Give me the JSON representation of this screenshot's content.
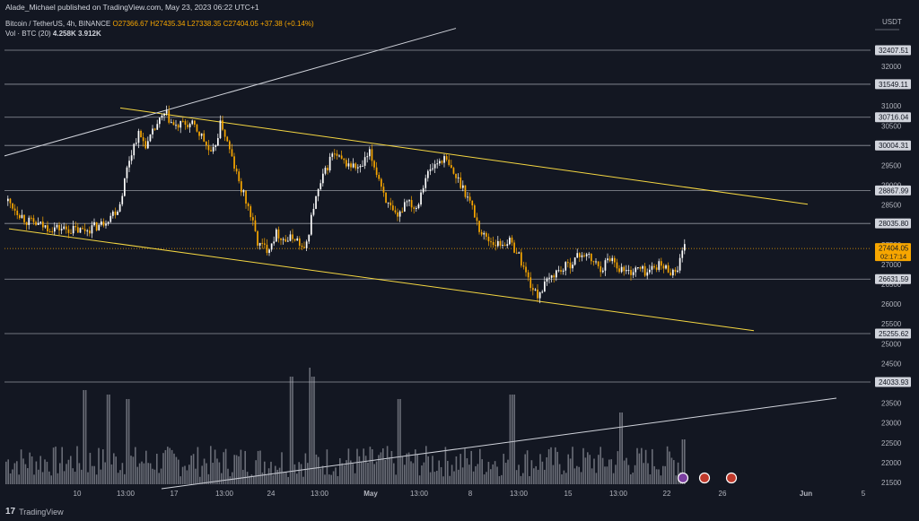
{
  "publisher_line": "Alade_Michael published on TradingView.com, May 23, 2023 06:22 UTC+1",
  "symbol": {
    "name": "Bitcoin / TetherUS, 4h, BINANCE",
    "ohlc": "O27366.67  H27435.34  L27338.35  C27404.05  +37.38 (+0.14%)"
  },
  "volume": {
    "label": "Vol · BTC (20)",
    "v1": "4.258K",
    "v2": "3.912K"
  },
  "footer": {
    "logo": "17",
    "brand": "TradingView"
  },
  "colors": {
    "background": "#131722",
    "candle": "#ffffff",
    "candle_alt": "#f7a600",
    "channel": "#f5d742",
    "trendline": "#d1d4dc",
    "level_line": "#b2b5be",
    "price_tag": "#f7a600"
  },
  "chart_data": {
    "type": "candlestick",
    "currency": "USDT",
    "ylim": [
      21200,
      33500
    ],
    "y_ticks": [
      21500,
      22000,
      22500,
      23000,
      23500,
      24000,
      24500,
      25000,
      25500,
      26000,
      26500,
      27000,
      27500,
      28000,
      28500,
      29000,
      29500,
      30000,
      30500,
      31000,
      31500,
      32000
    ],
    "x_ticks": [
      "10",
      "13:00",
      "17",
      "13:00",
      "24",
      "13:00",
      "May",
      "13:00",
      "8",
      "13:00",
      "15",
      "13:00",
      "22",
      "26",
      "Jun",
      "5"
    ],
    "horizontal_levels": [
      32407.51,
      31549.11,
      30716.04,
      30004.31,
      28867.99,
      28035.8,
      26631.59,
      25255.62,
      24033.93
    ],
    "current_price": 27404.05,
    "countdown": "02:17:14",
    "price_path": [
      [
        0,
        28600
      ],
      [
        2,
        28100
      ],
      [
        4,
        27950
      ],
      [
        6,
        27900
      ],
      [
        8,
        27850
      ],
      [
        10,
        28000
      ],
      [
        12,
        28450
      ],
      [
        13,
        29600
      ],
      [
        14,
        30300
      ],
      [
        15,
        30000
      ],
      [
        16,
        30500
      ],
      [
        17,
        30800
      ],
      [
        18,
        30450
      ],
      [
        19,
        30550
      ],
      [
        20,
        30500
      ],
      [
        21,
        30200
      ],
      [
        22,
        29700
      ],
      [
        23,
        30600
      ],
      [
        24,
        29800
      ],
      [
        25,
        29000
      ],
      [
        26,
        28400
      ],
      [
        27,
        27500
      ],
      [
        28,
        27400
      ],
      [
        29,
        27800
      ],
      [
        30,
        27600
      ],
      [
        31,
        27700
      ],
      [
        32,
        27300
      ],
      [
        33,
        28500
      ],
      [
        34,
        29200
      ],
      [
        35,
        29800
      ],
      [
        36,
        29600
      ],
      [
        37,
        29500
      ],
      [
        38,
        29400
      ],
      [
        39,
        29800
      ],
      [
        40,
        29200
      ],
      [
        41,
        28500
      ],
      [
        42,
        28100
      ],
      [
        43,
        28700
      ],
      [
        44,
        28400
      ],
      [
        45,
        29200
      ],
      [
        46,
        29500
      ],
      [
        47,
        29700
      ],
      [
        48,
        29300
      ],
      [
        49,
        29000
      ],
      [
        50,
        28500
      ],
      [
        51,
        27800
      ],
      [
        52,
        27600
      ],
      [
        53,
        27500
      ],
      [
        54,
        27600
      ],
      [
        55,
        27300
      ],
      [
        56,
        26700
      ],
      [
        57,
        26200
      ],
      [
        58,
        26500
      ],
      [
        59,
        26800
      ],
      [
        60,
        26900
      ],
      [
        61,
        27100
      ],
      [
        62,
        27300
      ],
      [
        63,
        27100
      ],
      [
        64,
        26900
      ],
      [
        65,
        27200
      ],
      [
        66,
        26900
      ],
      [
        67,
        26800
      ],
      [
        68,
        26900
      ],
      [
        69,
        26800
      ],
      [
        70,
        27000
      ],
      [
        71,
        26900
      ],
      [
        72,
        26800
      ],
      [
        73,
        27400
      ]
    ]
  }
}
